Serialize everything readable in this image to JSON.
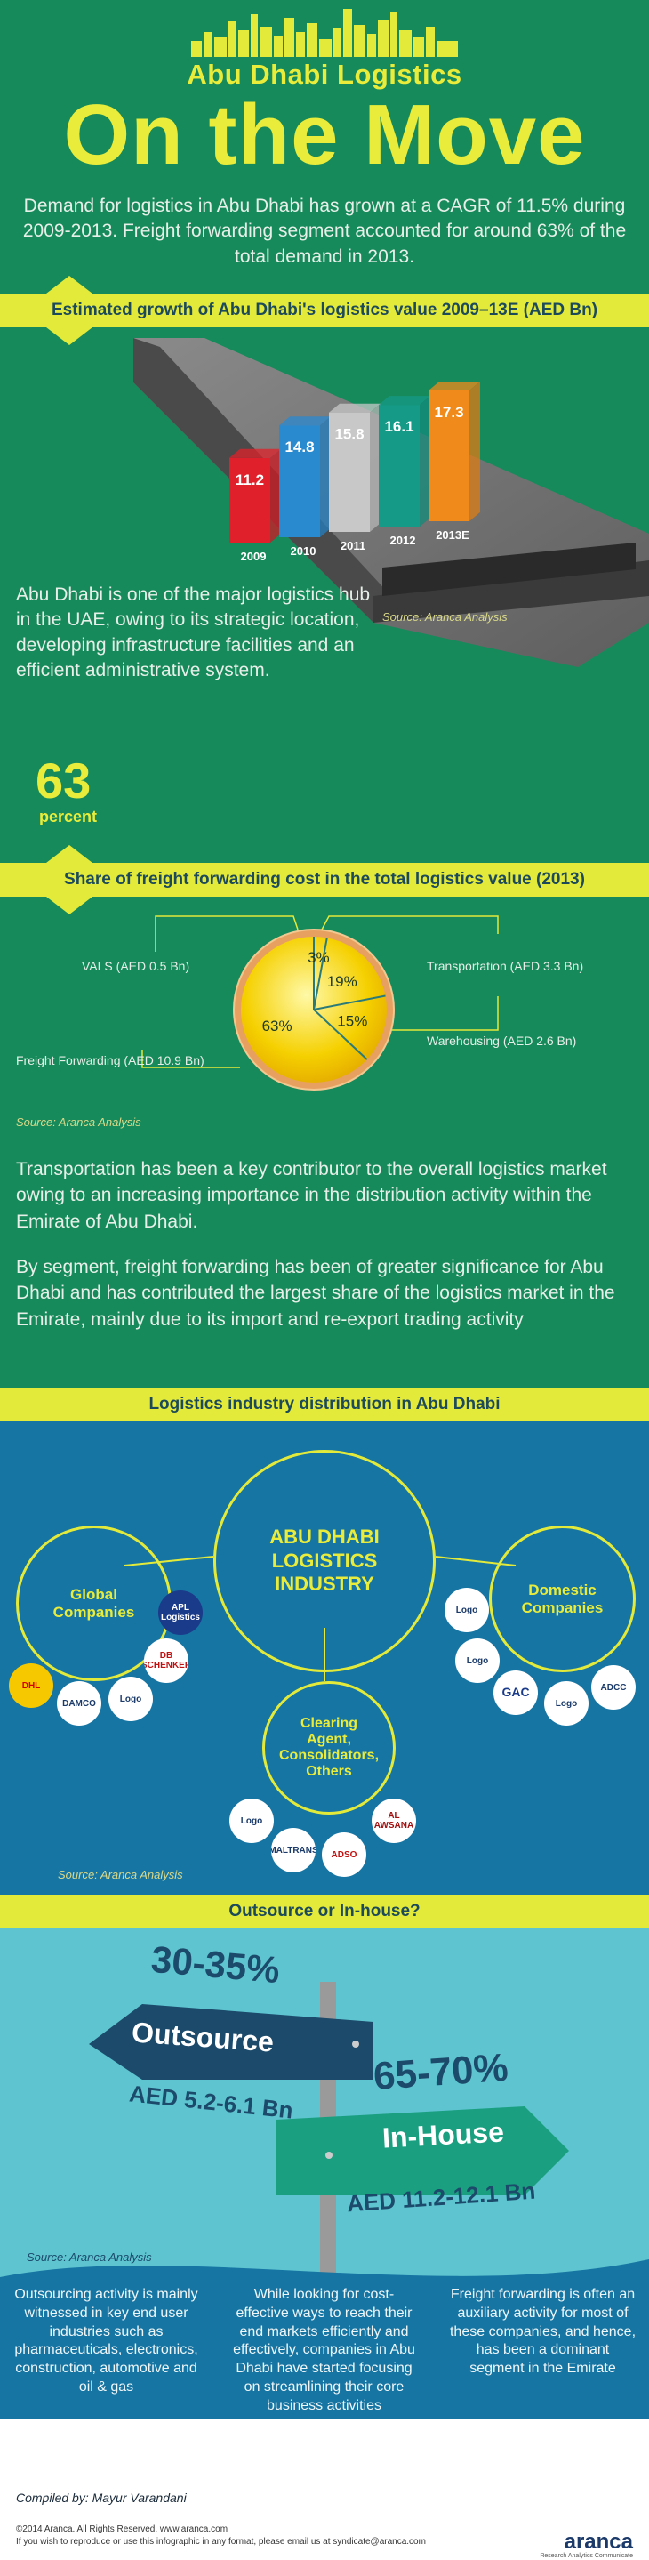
{
  "header": {
    "brand": "Abu Dhabi Logistics",
    "headline": "On the Move",
    "intro": "Demand for logistics in Abu Dhabi has grown at a CAGR of 11.5% during 2009-2013. Freight forwarding segment accounted for around 63% of the total demand in 2013."
  },
  "growth_section": {
    "title": "Estimated growth of Abu Dhabi's logistics value 2009–13E (AED Bn)",
    "source": "Source: Aranca Analysis",
    "about": "Abu Dhabi is one of the major logistics hub in the UAE, owing to its strategic location, developing infrastructure facilities and an efficient administrative system.",
    "big_number": "63",
    "big_number_label": "percent"
  },
  "share_section": {
    "title": "Share of freight forwarding cost in the total logistics value (2013)",
    "labels": {
      "vals": "VALS (AED 0.5 Bn)",
      "transportation": "Transportation (AED 3.3 Bn)",
      "warehousing": "Warehousing (AED 2.6 Bn)",
      "freight": "Freight Forwarding (AED 10.9 Bn)"
    },
    "pct_labels": {
      "vals": "3%",
      "transportation": "19%",
      "warehousing": "15%",
      "freight": "63%"
    },
    "source": "Source: Aranca Analysis",
    "para1": "Transportation has been a key contributor to the overall logistics market owing to an increasing importance in the distribution activity within the Emirate of Abu Dhabi.",
    "para2": "By segment, freight forwarding has been of greater significance for Abu Dhabi and has contributed the largest share of the logistics market in the Emirate, mainly due to its import and re-export trading activity"
  },
  "chart_data": [
    {
      "type": "bar",
      "title": "Estimated growth of Abu Dhabi's logistics value 2009–13E (AED Bn)",
      "categories": [
        "2009",
        "2010",
        "2011",
        "2012",
        "2013E"
      ],
      "values": [
        11.2,
        14.8,
        15.8,
        16.1,
        17.3
      ],
      "colors": [
        "#e0202a",
        "#2a8ad0",
        "#c8c8c8",
        "#159a88",
        "#f08a1a"
      ]
    },
    {
      "type": "pie",
      "title": "Share of freight forwarding cost in the total logistics value (2013)",
      "categories": [
        "VALS",
        "Transportation",
        "Warehousing",
        "Freight Forwarding"
      ],
      "values": [
        0.5,
        3.3,
        2.6,
        10.9
      ],
      "percent": [
        3,
        19,
        15,
        63
      ]
    }
  ],
  "distribution_section": {
    "title": "Logistics industry distribution in Abu Dhabi",
    "center": "ABU DHABI LOGISTICS INDUSTRY",
    "global": "Global Companies",
    "domestic": "Domestic Companies",
    "clearing": "Clearing Agent, Consolidators, Others",
    "global_logos": [
      "APL Logistics",
      "DB SCHENKER",
      "DHL",
      "DAMCO",
      "Logo"
    ],
    "domestic_logos": [
      "Logo",
      "Logo",
      "GAC",
      "Logo",
      "ADCC"
    ],
    "clearing_logos": [
      "Logo",
      "AL AWSANA",
      "MALTRANS",
      "ADSO"
    ],
    "source": "Source: Aranca Analysis"
  },
  "outsource_section": {
    "title": "Outsource or In-house?",
    "outsource_pct": "30-35%",
    "outsource_label": "Outsource",
    "outsource_value": "AED 5.2-6.1 Bn",
    "inhouse_pct": "65-70%",
    "inhouse_label": "In-House",
    "inhouse_value": "AED 11.2-12.1 Bn",
    "source": "Source: Aranca Analysis",
    "col1": "Outsourcing activity is mainly witnessed in key end user industries such as pharmaceuticals, electronics, construction, automotive and oil & gas",
    "col2": "While looking for cost-effective ways to reach their end markets efficiently and effectively, companies in Abu Dhabi have started focusing on streamlining their core business activities",
    "col3": "Freight forwarding is often an auxiliary activity for most of these companies, and hence, has been a dominant segment in the Emirate"
  },
  "footer": {
    "compiled": "Compiled by: Mayur Varandani",
    "copyright": "©2014 Aranca. All Rights Reserved. www.aranca.com",
    "reproduce": "If you wish to reproduce or use this infographic in any format, please email us at syndicate@aranca.com",
    "logo": "aranca",
    "logo_sub": "Research Analytics Communicate"
  },
  "colors": {
    "green": "#168a5a",
    "yellow": "#e3ea3a",
    "blue": "#1675a3",
    "teal": "#5ec4d0"
  }
}
